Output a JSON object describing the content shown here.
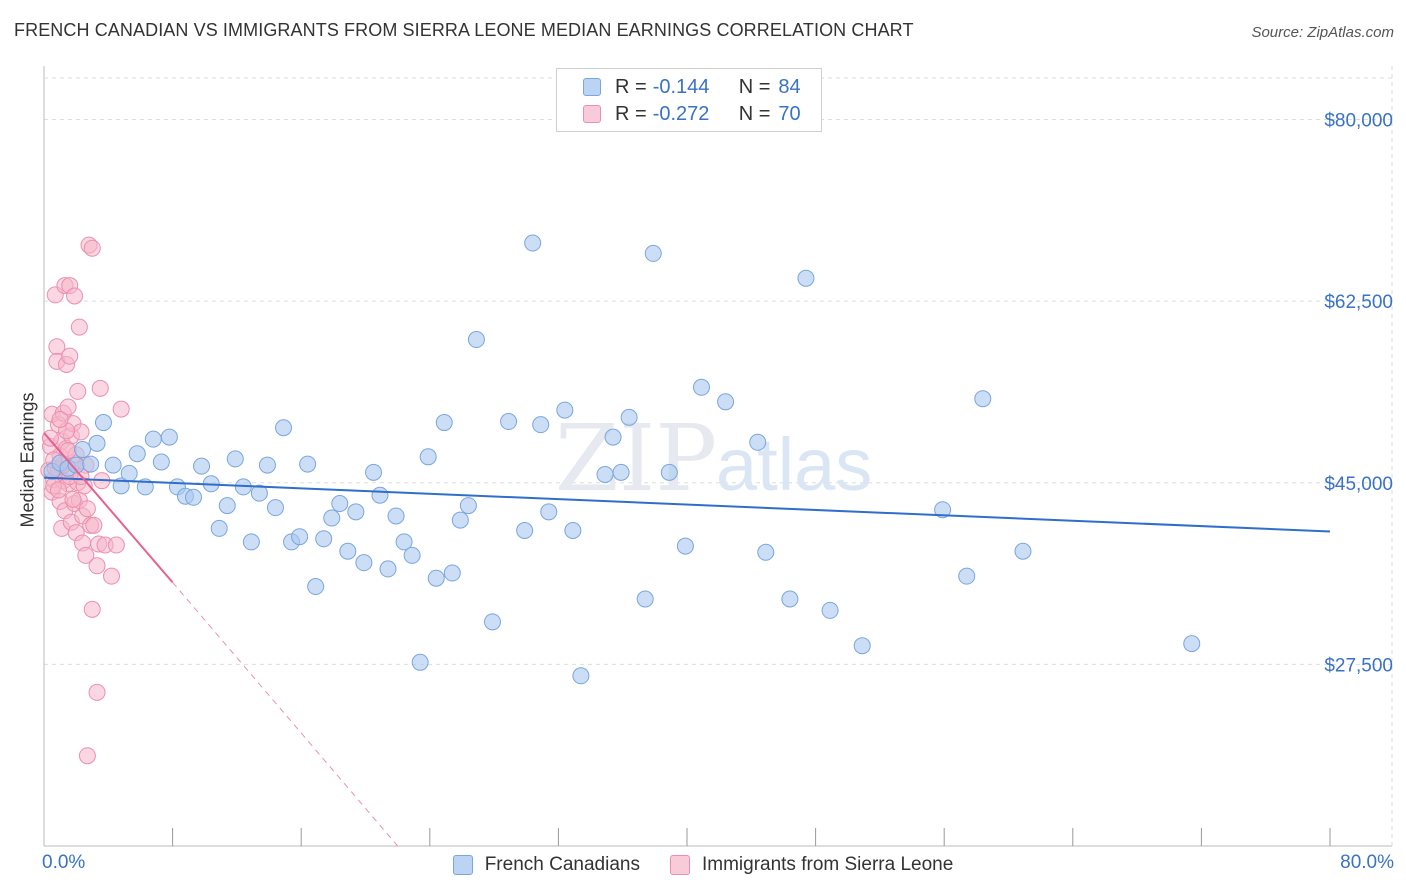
{
  "header": {
    "title": "FRENCH CANADIAN VS IMMIGRANTS FROM SIERRA LEONE MEDIAN EARNINGS CORRELATION CHART",
    "source": "Source: ZipAtlas.com"
  },
  "legend": {
    "rows": [
      {
        "r_label": "R =",
        "r_value": "-0.144",
        "n_label": "N =",
        "n_value": "84"
      },
      {
        "r_label": "R =",
        "r_value": "-0.272",
        "n_label": "N =",
        "n_value": "70"
      }
    ]
  },
  "bottom_legend": {
    "items": [
      {
        "label": "French Canadians"
      },
      {
        "label": "Immigrants from Sierra Leone"
      }
    ]
  },
  "axes": {
    "x_min_label": "0.0%",
    "x_max_label": "80.0%",
    "y_label": "Median Earnings"
  },
  "watermark": {
    "part1": "ZIP",
    "part2": "atlas"
  },
  "colors": {
    "blue_fill": "#a9c8ef",
    "blue_stroke": "#7aa6de",
    "blue_line": "#2f6fcb",
    "pink_fill": "#f5b6ca",
    "pink_stroke": "#ec8fae",
    "pink_line": "#e8608f",
    "axis_text": "#3a72c4",
    "grid": "#dddddd"
  },
  "chart_data": {
    "type": "scatter",
    "title": "FRENCH CANADIAN VS IMMIGRANTS FROM SIERRA LEONE MEDIAN EARNINGS CORRELATION CHART",
    "xlabel": "",
    "ylabel": "Median Earnings",
    "xlim": [
      0,
      80
    ],
    "ylim": [
      10000,
      84000
    ],
    "x_unit": "%",
    "y_ticks": [
      27500,
      45000,
      62500,
      80000
    ],
    "y_tick_labels": [
      "$27,500",
      "$45,000",
      "$62,500",
      "$80,000"
    ],
    "grid": true,
    "legend_position": "top-center",
    "series": [
      {
        "name": "French Canadians",
        "r": -0.144,
        "n": 84,
        "trend": {
          "x0": 0,
          "y0": 45500,
          "x1": 80,
          "y1": 40300
        },
        "points": [
          [
            0.5,
            46100
          ],
          [
            1.0,
            46900
          ],
          [
            1.5,
            46400
          ],
          [
            2.0,
            46700
          ],
          [
            2.4,
            48200
          ],
          [
            2.9,
            46800
          ],
          [
            3.3,
            48800
          ],
          [
            3.7,
            50800
          ],
          [
            4.3,
            46700
          ],
          [
            4.8,
            44700
          ],
          [
            5.3,
            45900
          ],
          [
            5.8,
            47800
          ],
          [
            6.3,
            44600
          ],
          [
            6.8,
            49200
          ],
          [
            7.3,
            47000
          ],
          [
            7.8,
            49400
          ],
          [
            8.3,
            44600
          ],
          [
            8.8,
            43700
          ],
          [
            9.3,
            43600
          ],
          [
            9.8,
            46600
          ],
          [
            10.4,
            44900
          ],
          [
            10.9,
            40600
          ],
          [
            11.4,
            42800
          ],
          [
            11.9,
            47300
          ],
          [
            12.4,
            44600
          ],
          [
            12.9,
            39300
          ],
          [
            13.4,
            44000
          ],
          [
            13.9,
            46700
          ],
          [
            14.4,
            42600
          ],
          [
            14.9,
            50300
          ],
          [
            15.4,
            39300
          ],
          [
            15.9,
            39800
          ],
          [
            16.4,
            46800
          ],
          [
            16.9,
            35000
          ],
          [
            17.4,
            39600
          ],
          [
            17.9,
            41600
          ],
          [
            18.4,
            43000
          ],
          [
            18.9,
            38400
          ],
          [
            19.4,
            42200
          ],
          [
            19.9,
            37300
          ],
          [
            20.5,
            46000
          ],
          [
            20.9,
            43800
          ],
          [
            21.4,
            36700
          ],
          [
            21.9,
            41800
          ],
          [
            22.4,
            39300
          ],
          [
            22.9,
            38000
          ],
          [
            23.4,
            27700
          ],
          [
            23.9,
            47500
          ],
          [
            24.4,
            35800
          ],
          [
            24.9,
            50800
          ],
          [
            25.4,
            36300
          ],
          [
            25.9,
            41400
          ],
          [
            26.4,
            42800
          ],
          [
            26.9,
            58800
          ],
          [
            27.9,
            31600
          ],
          [
            28.9,
            50900
          ],
          [
            29.9,
            40400
          ],
          [
            30.4,
            68100
          ],
          [
            30.9,
            50600
          ],
          [
            31.4,
            42200
          ],
          [
            32.4,
            52000
          ],
          [
            32.9,
            40400
          ],
          [
            33.4,
            26400
          ],
          [
            34.9,
            45800
          ],
          [
            35.4,
            49400
          ],
          [
            35.9,
            46000
          ],
          [
            36.4,
            51300
          ],
          [
            37.9,
            67100
          ],
          [
            37.4,
            33800
          ],
          [
            38.9,
            46000
          ],
          [
            39.9,
            38900
          ],
          [
            40.9,
            54200
          ],
          [
            42.4,
            52800
          ],
          [
            44.4,
            48900
          ],
          [
            44.9,
            38300
          ],
          [
            46.4,
            33800
          ],
          [
            47.4,
            64700
          ],
          [
            48.9,
            32700
          ],
          [
            50.9,
            29300
          ],
          [
            55.9,
            42400
          ],
          [
            57.4,
            36000
          ],
          [
            58.4,
            53100
          ],
          [
            60.9,
            38400
          ],
          [
            71.4,
            29500
          ]
        ]
      },
      {
        "name": "Immigrants from Sierra Leone",
        "r": -0.272,
        "n": 70,
        "trend": {
          "x0": 0,
          "y0": 49800,
          "x1": 8,
          "y1": 35400,
          "dashed_to": {
            "x": 22,
            "y": 10000
          }
        },
        "points": [
          [
            0.3,
            46200
          ],
          [
            0.4,
            48500
          ],
          [
            0.5,
            44100
          ],
          [
            0.5,
            51600
          ],
          [
            0.6,
            45300
          ],
          [
            0.7,
            63100
          ],
          [
            0.8,
            58100
          ],
          [
            0.8,
            56700
          ],
          [
            0.9,
            46300
          ],
          [
            0.9,
            50600
          ],
          [
            1.0,
            43200
          ],
          [
            1.0,
            47600
          ],
          [
            1.1,
            40600
          ],
          [
            1.1,
            49000
          ],
          [
            1.2,
            45200
          ],
          [
            1.2,
            51700
          ],
          [
            1.3,
            64000
          ],
          [
            1.3,
            42300
          ],
          [
            1.4,
            48300
          ],
          [
            1.4,
            56400
          ],
          [
            1.5,
            44900
          ],
          [
            1.5,
            52300
          ],
          [
            1.6,
            64000
          ],
          [
            1.6,
            57200
          ],
          [
            1.7,
            49500
          ],
          [
            1.7,
            41200
          ],
          [
            1.8,
            50700
          ],
          [
            1.8,
            46900
          ],
          [
            1.9,
            43000
          ],
          [
            1.9,
            63000
          ],
          [
            2.0,
            40200
          ],
          [
            2.0,
            47700
          ],
          [
            2.1,
            45000
          ],
          [
            2.1,
            53800
          ],
          [
            2.2,
            60000
          ],
          [
            2.2,
            43300
          ],
          [
            2.3,
            49900
          ],
          [
            2.4,
            41800
          ],
          [
            2.4,
            39200
          ],
          [
            2.5,
            44700
          ],
          [
            2.6,
            38000
          ],
          [
            2.6,
            46700
          ],
          [
            2.7,
            18700
          ],
          [
            2.7,
            42500
          ],
          [
            2.8,
            67900
          ],
          [
            2.9,
            40900
          ],
          [
            3.0,
            67600
          ],
          [
            3.0,
            32800
          ],
          [
            3.1,
            40900
          ],
          [
            3.3,
            24800
          ],
          [
            3.3,
            37000
          ],
          [
            3.4,
            39100
          ],
          [
            3.5,
            54100
          ],
          [
            3.6,
            45200
          ],
          [
            3.8,
            39000
          ],
          [
            4.2,
            36000
          ],
          [
            4.5,
            39000
          ],
          [
            4.8,
            52100
          ],
          [
            0.6,
            44700
          ],
          [
            1.6,
            45600
          ],
          [
            0.7,
            46400
          ],
          [
            1.2,
            46700
          ],
          [
            0.9,
            44300
          ],
          [
            1.4,
            50000
          ],
          [
            0.4,
            49300
          ],
          [
            1.8,
            43400
          ],
          [
            2.3,
            45600
          ],
          [
            0.6,
            47200
          ],
          [
            1.0,
            51100
          ],
          [
            1.5,
            48100
          ]
        ]
      }
    ]
  }
}
